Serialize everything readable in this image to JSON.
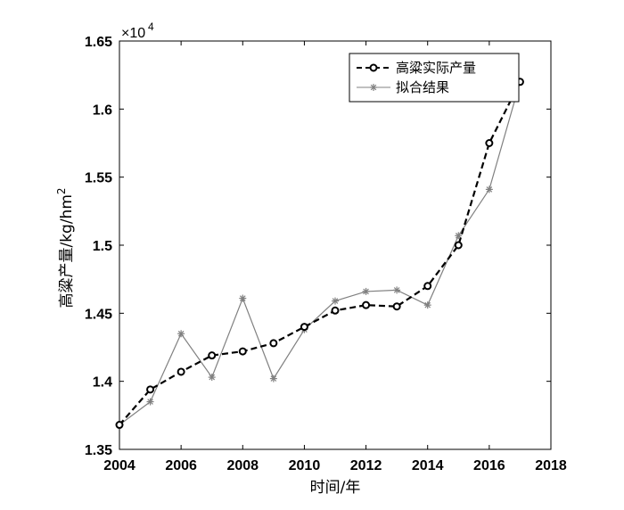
{
  "chart_data": {
    "type": "line",
    "xlabel": "时间/年",
    "ylabel_main": "高粱产量/kg/hm",
    "ylabel_sup": "2",
    "exponent_base": "×10",
    "exponent_power": "4",
    "xlim": [
      2004,
      2018
    ],
    "ylim": [
      1.35,
      1.65
    ],
    "x_ticks": [
      2004,
      2006,
      2008,
      2010,
      2012,
      2014,
      2016,
      2018
    ],
    "x_tick_labels": [
      "2004",
      "2006",
      "2008",
      "2010",
      "2012",
      "2014",
      "2016",
      "2018"
    ],
    "y_ticks": [
      1.35,
      1.4,
      1.45,
      1.5,
      1.55,
      1.6,
      1.65
    ],
    "y_tick_labels": [
      "1.35",
      "1.4",
      "1.45",
      "1.5",
      "1.55",
      "1.6",
      "1.65"
    ],
    "legend_position": "top-right",
    "grid": false,
    "x": [
      2004,
      2005,
      2006,
      2007,
      2008,
      2009,
      2010,
      2011,
      2012,
      2013,
      2014,
      2015,
      2016,
      2017
    ],
    "series": [
      {
        "name": "高粱实际产量",
        "style": "dashed-circle",
        "color": "#000000",
        "values": [
          1.368,
          1.394,
          1.407,
          1.419,
          1.422,
          1.428,
          1.44,
          1.452,
          1.456,
          1.455,
          1.47,
          1.5,
          1.575,
          1.62
        ]
      },
      {
        "name": "拟合结果",
        "style": "solid-asterisk",
        "color": "#808080",
        "values": [
          1.368,
          1.385,
          1.435,
          1.403,
          1.461,
          1.402,
          1.438,
          1.459,
          1.466,
          1.467,
          1.456,
          1.507,
          1.541,
          1.62
        ]
      }
    ]
  }
}
